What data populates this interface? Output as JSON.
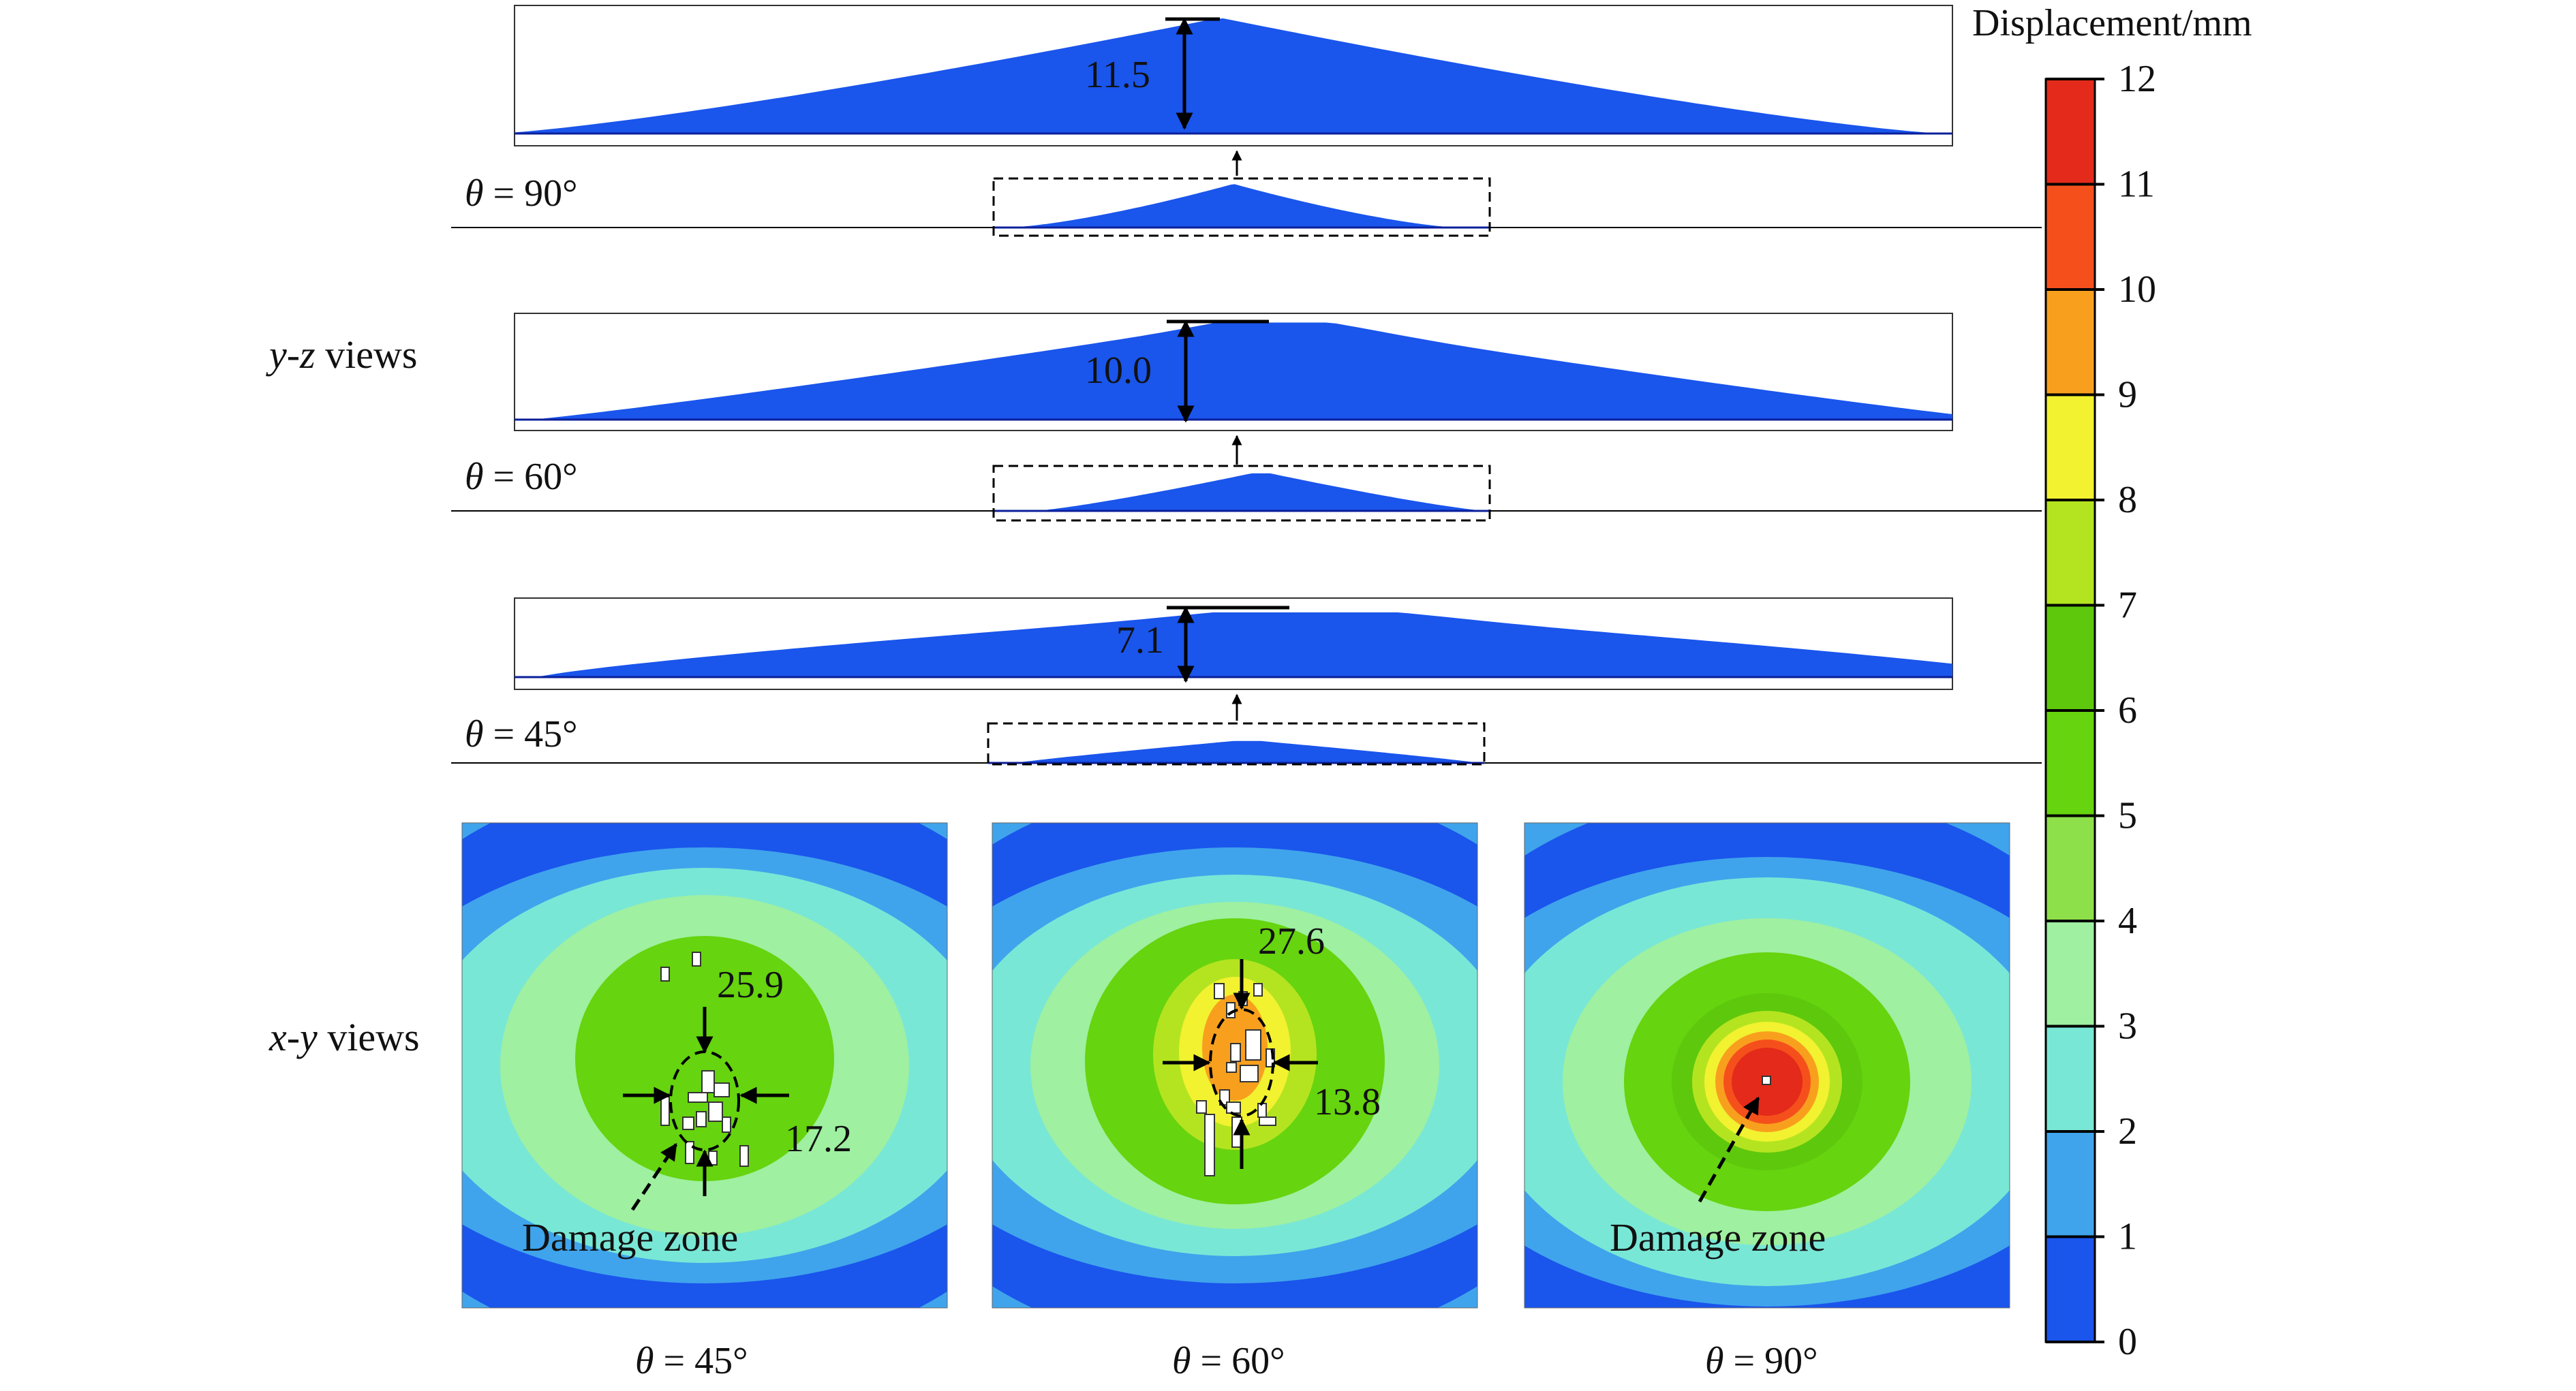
{
  "colorbar": {
    "title": "Displacement/mm",
    "ticks": [
      "0",
      "1",
      "2",
      "3",
      "4",
      "5",
      "6",
      "7",
      "8",
      "9",
      "10",
      "11",
      "12"
    ],
    "colors": [
      "#0a2fd6",
      "#1a55ec",
      "#3fa4ec",
      "#79e7d6",
      "#9ff0a0",
      "#8ee04a",
      "#66d40e",
      "#5ec80c",
      "#b4e420",
      "#f2f230",
      "#f8a01e",
      "#f5501c",
      "#e42a1a"
    ]
  },
  "labels": {
    "yz_views": {
      "italic": "y-z",
      "rest": " views"
    },
    "xy_views": {
      "italic": "x-y",
      "rest": " views"
    },
    "theta_sym": "θ"
  },
  "yz_rows": [
    {
      "theta": " = 90°",
      "measure": "11.5"
    },
    {
      "theta": " = 60°",
      "measure": "10.0"
    },
    {
      "theta": " = 45°",
      "measure": "7.1"
    }
  ],
  "xy_panels": [
    {
      "theta": " = 45°",
      "vertical": "25.9",
      "horizontal": "17.2",
      "damage_label": "Damage zone"
    },
    {
      "theta": " = 60°",
      "vertical": "27.6",
      "horizontal": "13.8",
      "damage_label": ""
    },
    {
      "theta": " = 90°",
      "vertical": "",
      "horizontal": "",
      "damage_label": "Damage zone"
    }
  ]
}
